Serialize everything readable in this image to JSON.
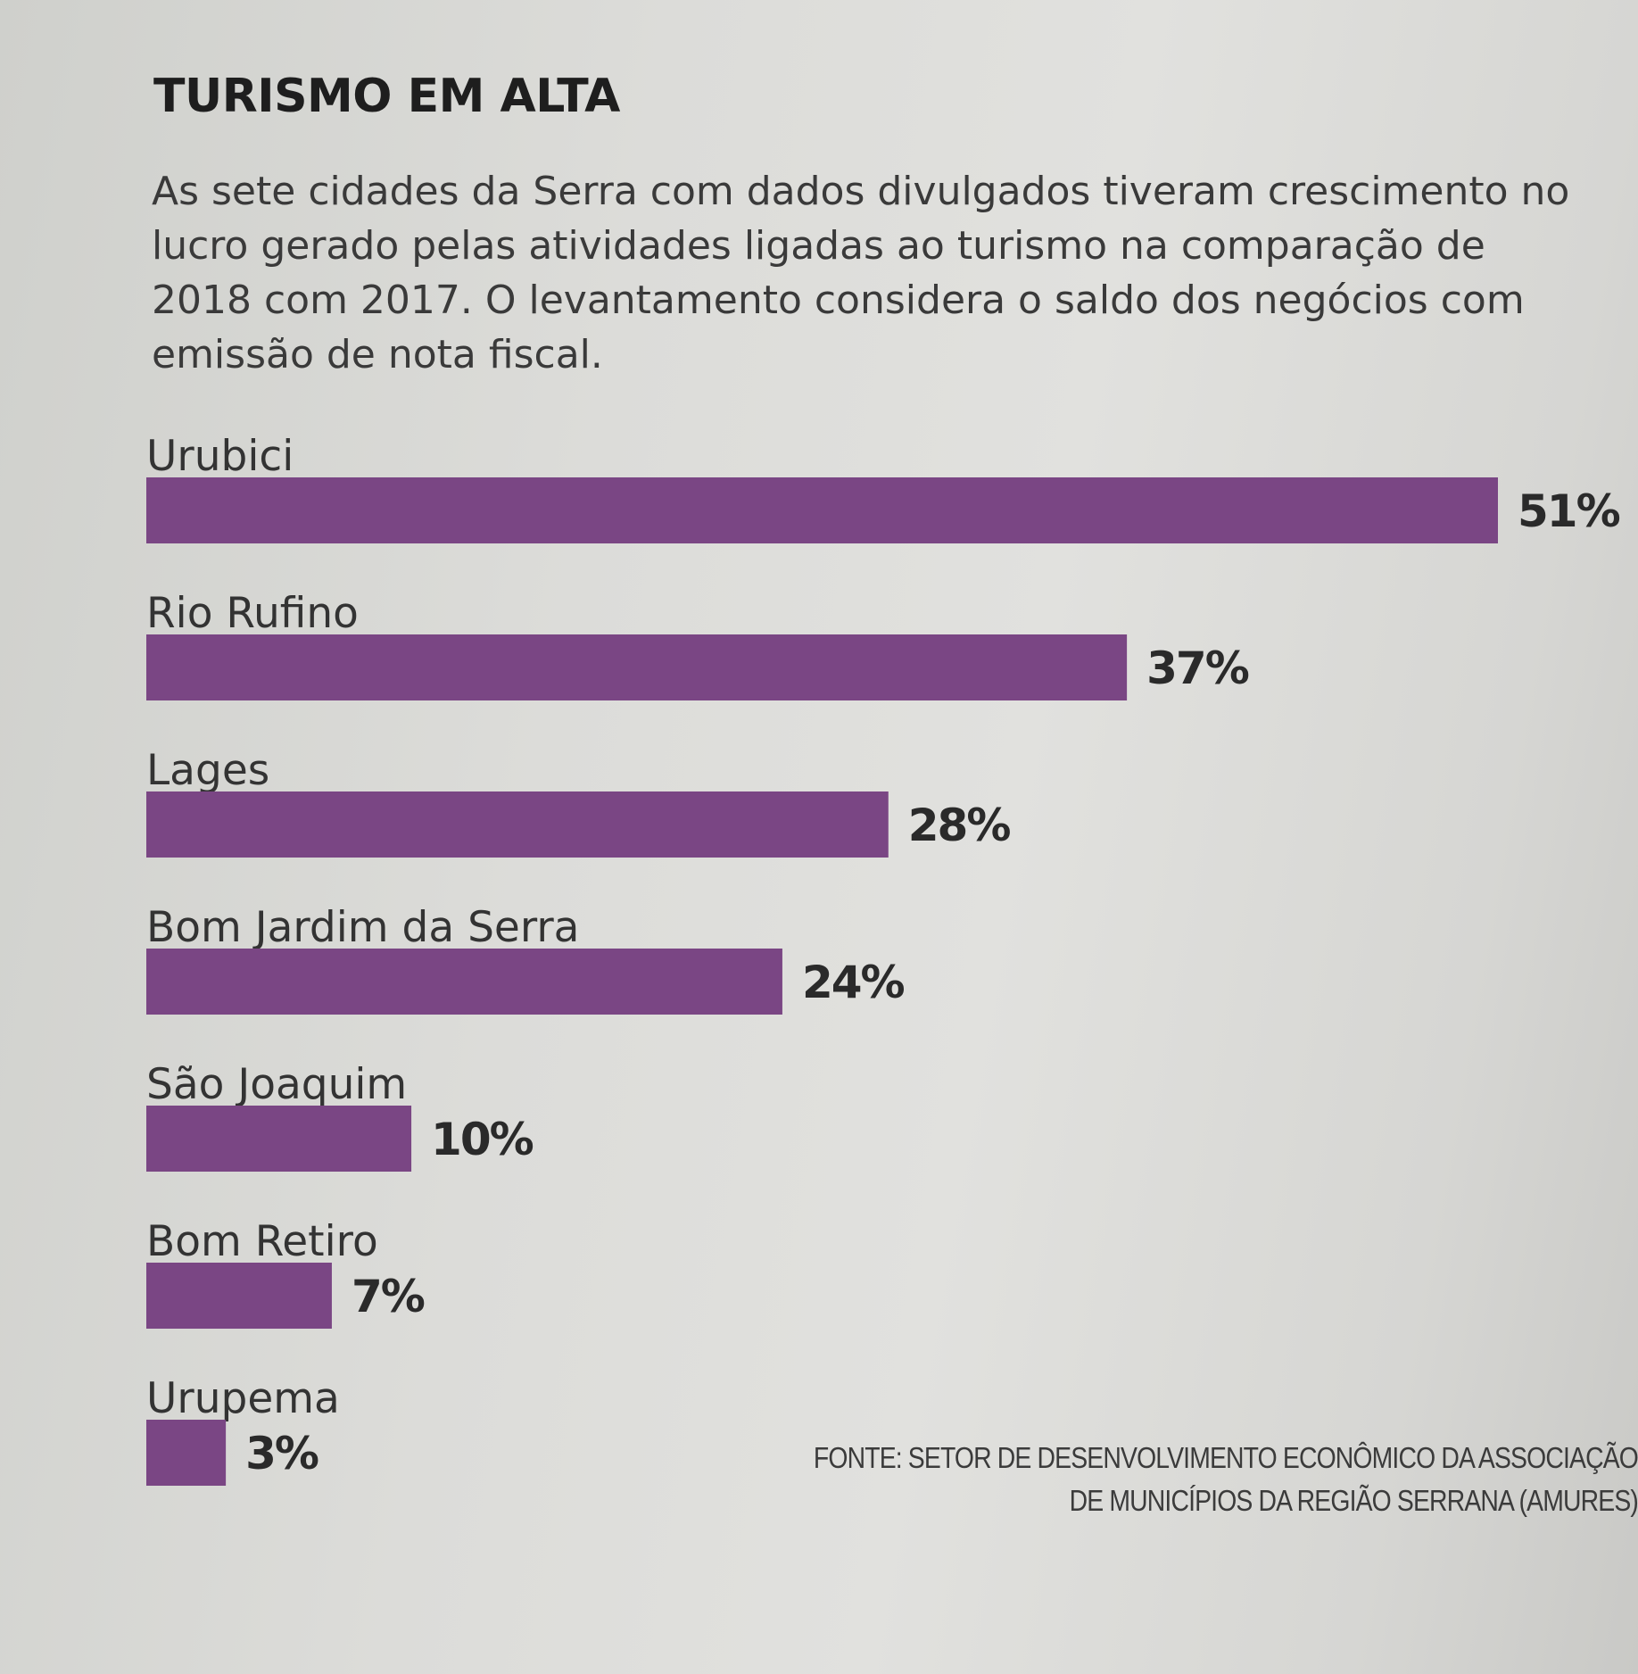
{
  "chart_data": {
    "type": "bar",
    "orientation": "horizontal",
    "title": "TURISMO EM ALTA",
    "subtitle": "As sete cidades da Serra com dados divulgados tiveram crescimento no lucro gerado pelas atividades ligadas ao turismo na comparação de 2018 com 2017. O levantamento considera o saldo dos negócios com emissão de nota fiscal.",
    "categories": [
      "Urubici",
      "Rio Rufino",
      "Lages",
      "Bom Jardim da Serra",
      "São Joaquim",
      "Bom Retiro",
      "Urupema"
    ],
    "values": [
      51,
      37,
      28,
      24,
      10,
      7,
      3
    ],
    "value_labels": [
      "51%",
      "37%",
      "28%",
      "24%",
      "10%",
      "7%",
      "3%"
    ],
    "xlim": [
      0,
      51
    ],
    "grid": false,
    "legend": "none",
    "bar_color": "#7a4684",
    "source": "FONTE: SETOR DE DESENVOLVIMENTO ECONÔMICO DA ASSOCIAÇÃO\nDE MUNICÍPIOS DA REGIÃO SERRANA (AMURES)"
  }
}
